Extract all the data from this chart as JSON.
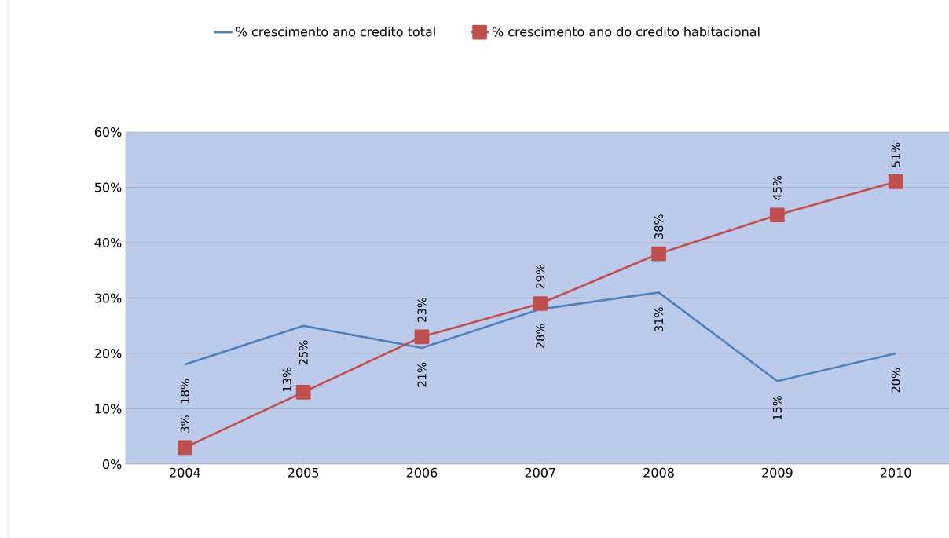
{
  "chart_data": {
    "type": "line",
    "categories": [
      "2004",
      "2005",
      "2006",
      "2007",
      "2008",
      "2009",
      "2010"
    ],
    "series": [
      {
        "name": "% crescimento ano credito total",
        "color": "#4f81bd",
        "marker": "none",
        "values": [
          18,
          25,
          21,
          28,
          31,
          15,
          20
        ],
        "value_labels": [
          "18%",
          "25%",
          "21%",
          "28%",
          "31%",
          "15%",
          "20%"
        ]
      },
      {
        "name": "% crescimento ano do credito habitacional",
        "color": "#c0504d",
        "marker": "square",
        "values": [
          3,
          13,
          23,
          29,
          38,
          45,
          51
        ],
        "value_labels": [
          "3%",
          "13%",
          "23%",
          "29%",
          "38%",
          "45%",
          "51%"
        ]
      }
    ],
    "ylim": [
      0,
      60
    ],
    "yticks": [
      {
        "value": 0,
        "label": "0%"
      },
      {
        "value": 10,
        "label": "10%"
      },
      {
        "value": 20,
        "label": "20%"
      },
      {
        "value": 30,
        "label": "30%"
      },
      {
        "value": 40,
        "label": "40%"
      },
      {
        "value": 50,
        "label": "50%"
      },
      {
        "value": 60,
        "label": "60%"
      }
    ],
    "grid": "y",
    "legend": "top"
  }
}
